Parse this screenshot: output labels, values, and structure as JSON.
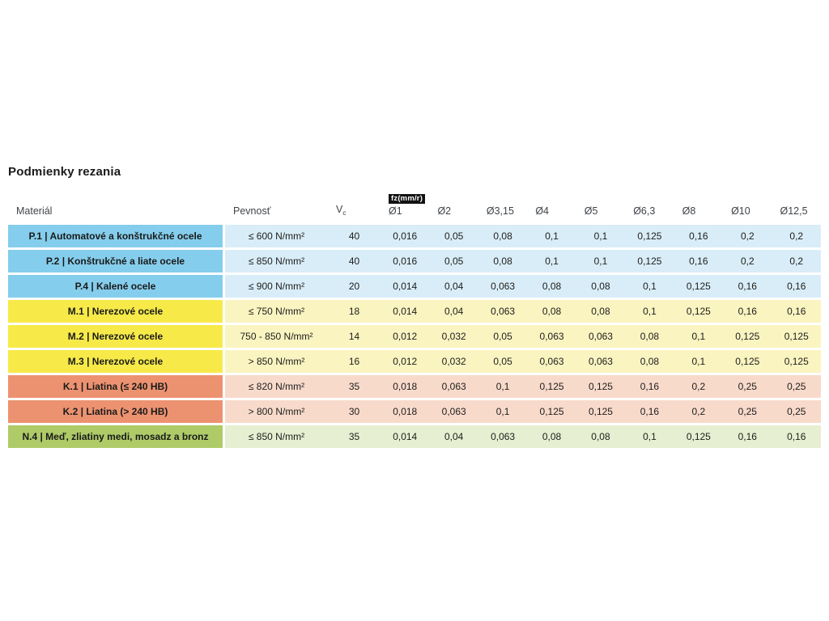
{
  "page": {
    "title": "Podmienky rezania"
  },
  "table": {
    "headers": {
      "material": "Materiál",
      "strength": "Pevnosť",
      "vc_main": "V",
      "vc_sub": "c",
      "fz_badge": "fz(mm/r)",
      "diameters": [
        "Ø1",
        "Ø2",
        "Ø3,15",
        "Ø4",
        "Ø5",
        "Ø6,3",
        "Ø8",
        "Ø10",
        "Ø12,5"
      ]
    },
    "colors": {
      "P": {
        "label": "#85CDEC",
        "cell": "#D9EDF8"
      },
      "M": {
        "label": "#F7EA48",
        "cell": "#FAF4C1"
      },
      "K": {
        "label": "#EC9270",
        "cell": "#F8DACB"
      },
      "N": {
        "label": "#AECB68",
        "cell": "#E6EFD1"
      }
    },
    "rows": [
      {
        "group": "P",
        "material": "P.1 | Automatové a konštrukčné ocele",
        "strength": "≤ 600 N/mm²",
        "vc": "40",
        "fz": [
          "0,016",
          "0,05",
          "0,08",
          "0,1",
          "0,1",
          "0,125",
          "0,16",
          "0,2",
          "0,2"
        ]
      },
      {
        "group": "P",
        "material": "P.2 | Konštrukčné a liate ocele",
        "strength": "≤ 850 N/mm²",
        "vc": "40",
        "fz": [
          "0,016",
          "0,05",
          "0,08",
          "0,1",
          "0,1",
          "0,125",
          "0,16",
          "0,2",
          "0,2"
        ]
      },
      {
        "group": "P",
        "material": "P.4 | Kalené ocele",
        "strength": "≤ 900 N/mm²",
        "vc": "20",
        "fz": [
          "0,014",
          "0,04",
          "0,063",
          "0,08",
          "0,08",
          "0,1",
          "0,125",
          "0,16",
          "0,16"
        ]
      },
      {
        "group": "M",
        "material": "M.1 | Nerezové ocele",
        "strength": "≤ 750 N/mm²",
        "vc": "18",
        "fz": [
          "0,014",
          "0,04",
          "0,063",
          "0,08",
          "0,08",
          "0,1",
          "0,125",
          "0,16",
          "0,16"
        ]
      },
      {
        "group": "M",
        "material": "M.2 | Nerezové ocele",
        "strength": "750 - 850 N/mm²",
        "vc": "14",
        "fz": [
          "0,012",
          "0,032",
          "0,05",
          "0,063",
          "0,063",
          "0,08",
          "0,1",
          "0,125",
          "0,125"
        ]
      },
      {
        "group": "M",
        "material": "M.3 | Nerezové ocele",
        "strength": "> 850 N/mm²",
        "vc": "16",
        "fz": [
          "0,012",
          "0,032",
          "0,05",
          "0,063",
          "0,063",
          "0,08",
          "0,1",
          "0,125",
          "0,125"
        ]
      },
      {
        "group": "K",
        "material": "K.1 | Liatina (≤ 240 HB)",
        "strength": "≤ 820 N/mm²",
        "vc": "35",
        "fz": [
          "0,018",
          "0,063",
          "0,1",
          "0,125",
          "0,125",
          "0,16",
          "0,2",
          "0,25",
          "0,25"
        ]
      },
      {
        "group": "K",
        "material": "K.2 | Liatina (> 240 HB)",
        "strength": "> 800 N/mm²",
        "vc": "30",
        "fz": [
          "0,018",
          "0,063",
          "0,1",
          "0,125",
          "0,125",
          "0,16",
          "0,2",
          "0,25",
          "0,25"
        ]
      },
      {
        "group": "N",
        "material": "N.4 | Meď, zliatiny medi, mosadz a bronz",
        "strength": "≤ 850 N/mm²",
        "vc": "35",
        "fz": [
          "0,014",
          "0,04",
          "0,063",
          "0,08",
          "0,08",
          "0,1",
          "0,125",
          "0,16",
          "0,16"
        ]
      }
    ]
  }
}
